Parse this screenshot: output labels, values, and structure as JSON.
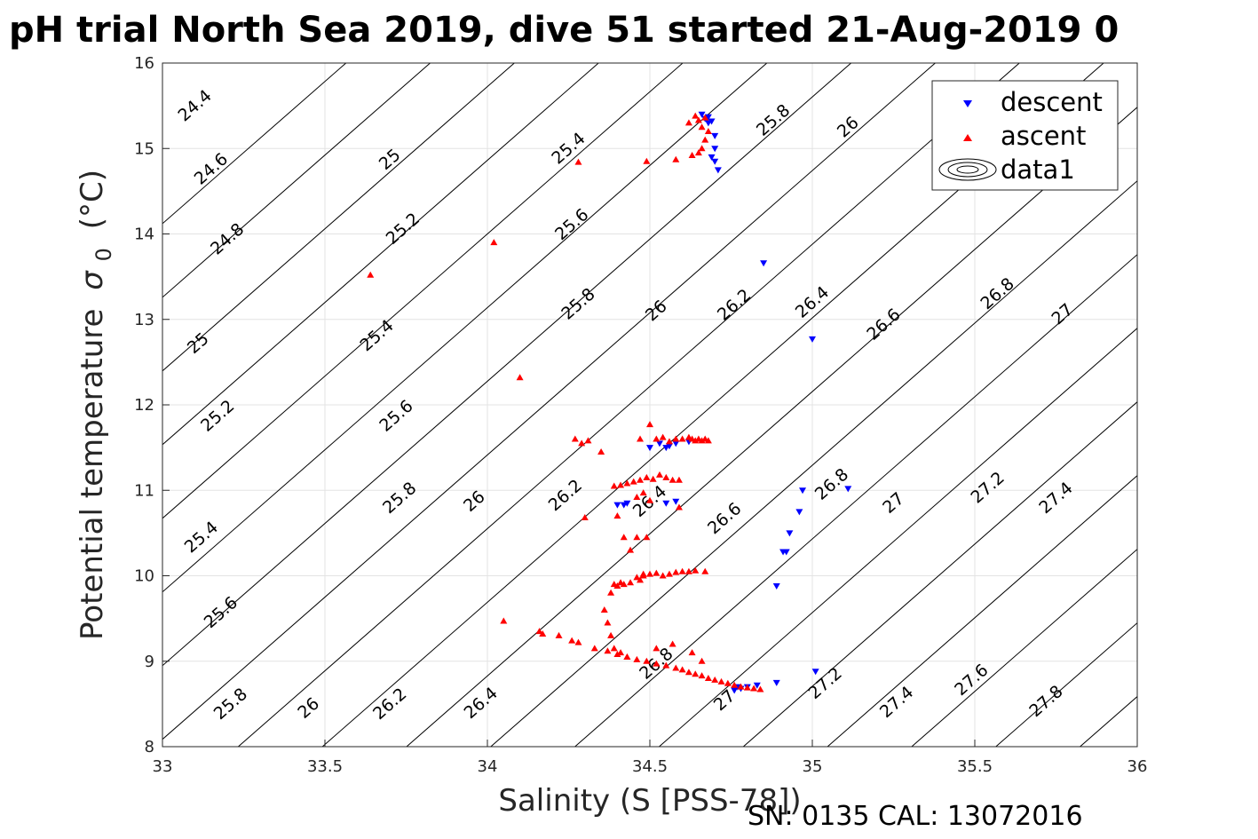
{
  "chart_data": {
    "type": "scatter",
    "title": "pH trial North Sea 2019, dive 51 started 21-Aug-2019 0",
    "xlabel": "Salinity (S [PSS-78])",
    "ylabel": "Potential temperature",
    "ylabel_symbol": "σ",
    "ylabel_sub": "0",
    "ylabel_unit": "(°C)",
    "xlim": [
      33,
      36
    ],
    "ylim": [
      8,
      16
    ],
    "xticks": [
      "33",
      "33.5",
      "34",
      "34.5",
      "35",
      "35.5",
      "36"
    ],
    "yticks": [
      "8",
      "9",
      "10",
      "11",
      "12",
      "13",
      "14",
      "15",
      "16"
    ],
    "grid": true,
    "legend_position": "top-right",
    "legend": [
      "descent",
      "ascent",
      "data1"
    ],
    "colors": {
      "descent": "#0000ff",
      "ascent": "#ff0000",
      "contour": "#000000"
    },
    "footer": "SN: 0135  CAL: 13072016",
    "contour_levels": [
      24.2,
      24.4,
      24.6,
      24.8,
      25.0,
      25.2,
      25.4,
      25.6,
      25.8,
      26.0,
      26.2,
      26.4,
      26.6,
      26.8,
      27.0,
      27.2,
      27.4,
      27.6,
      27.8,
      28.0
    ],
    "contour_labels": [
      {
        "text": "24.4",
        "x": 33.1,
        "y": 15.5
      },
      {
        "text": "24.6",
        "x": 33.15,
        "y": 14.76
      },
      {
        "text": "24.8",
        "x": 33.2,
        "y": 13.94
      },
      {
        "text": "25",
        "x": 33.11,
        "y": 12.72
      },
      {
        "text": "25.2",
        "x": 33.17,
        "y": 11.87
      },
      {
        "text": "25.4",
        "x": 33.12,
        "y": 10.45
      },
      {
        "text": "25.6",
        "x": 33.18,
        "y": 9.57
      },
      {
        "text": "25.8",
        "x": 33.21,
        "y": 8.5
      },
      {
        "text": "26",
        "x": 33.45,
        "y": 8.45
      },
      {
        "text": "26.2",
        "x": 33.7,
        "y": 8.5
      },
      {
        "text": "26.4",
        "x": 33.98,
        "y": 8.51
      },
      {
        "text": "25",
        "x": 33.7,
        "y": 14.87
      },
      {
        "text": "25.2",
        "x": 33.74,
        "y": 14.06
      },
      {
        "text": "25.4",
        "x": 33.66,
        "y": 12.81
      },
      {
        "text": "25.6",
        "x": 33.72,
        "y": 11.87
      },
      {
        "text": "25.8",
        "x": 33.73,
        "y": 10.91
      },
      {
        "text": "26",
        "x": 33.96,
        "y": 10.87
      },
      {
        "text": "26.2",
        "x": 34.24,
        "y": 10.94
      },
      {
        "text": "26.4",
        "x": 34.5,
        "y": 10.87
      },
      {
        "text": "26.6",
        "x": 34.73,
        "y": 10.67
      },
      {
        "text": "26.8",
        "x": 34.52,
        "y": 8.97
      },
      {
        "text": "27",
        "x": 34.73,
        "y": 8.54
      },
      {
        "text": "27.2",
        "x": 35.04,
        "y": 8.74
      },
      {
        "text": "27.4",
        "x": 35.26,
        "y": 8.52
      },
      {
        "text": "27.6",
        "x": 35.49,
        "y": 8.78
      },
      {
        "text": "27.8",
        "x": 35.72,
        "y": 8.53
      },
      {
        "text": "25.4",
        "x": 34.25,
        "y": 15.0
      },
      {
        "text": "25.6",
        "x": 34.26,
        "y": 14.11
      },
      {
        "text": "25.8",
        "x": 34.28,
        "y": 13.18
      },
      {
        "text": "26",
        "x": 34.52,
        "y": 13.1
      },
      {
        "text": "26.2",
        "x": 34.76,
        "y": 13.17
      },
      {
        "text": "26.4",
        "x": 35.0,
        "y": 13.2
      },
      {
        "text": "26.6",
        "x": 35.22,
        "y": 12.94
      },
      {
        "text": "26.8",
        "x": 35.06,
        "y": 11.07
      },
      {
        "text": "27",
        "x": 35.25,
        "y": 10.85
      },
      {
        "text": "27.2",
        "x": 35.54,
        "y": 11.03
      },
      {
        "text": "27.4",
        "x": 35.75,
        "y": 10.91
      },
      {
        "text": "25.8",
        "x": 34.88,
        "y": 15.33
      },
      {
        "text": "26",
        "x": 35.11,
        "y": 15.25
      },
      {
        "text": "26.8",
        "x": 35.57,
        "y": 13.3
      },
      {
        "text": "27",
        "x": 35.77,
        "y": 13.06
      }
    ],
    "descent": {
      "x": [
        34.66,
        34.67,
        34.68,
        34.69,
        34.7,
        34.7,
        34.69,
        34.71,
        34.7,
        34.68,
        34.85,
        35.0,
        34.5,
        34.53,
        34.55,
        34.56,
        34.58,
        34.62,
        34.4,
        34.42,
        34.43,
        34.55,
        34.58,
        34.97,
        34.96,
        34.93,
        34.91,
        34.89,
        34.92,
        35.01,
        34.89,
        34.83,
        34.78,
        34.76,
        34.77,
        34.8,
        35.11
      ],
      "y": [
        15.4,
        15.35,
        15.3,
        15.32,
        15.15,
        15.0,
        14.9,
        14.75,
        14.85,
        15.37,
        13.66,
        12.77,
        11.5,
        11.55,
        11.5,
        11.52,
        11.55,
        11.57,
        10.83,
        10.83,
        10.85,
        10.85,
        10.87,
        11.0,
        10.75,
        10.5,
        10.28,
        9.88,
        10.28,
        8.88,
        8.75,
        8.72,
        8.68,
        8.66,
        8.7,
        8.7,
        11.02
      ]
    },
    "ascent": {
      "x": [
        33.64,
        34.02,
        34.1,
        34.28,
        34.49,
        34.58,
        34.63,
        34.65,
        34.66,
        34.67,
        34.68,
        34.66,
        34.65,
        34.67,
        34.64,
        34.62,
        34.27,
        34.29,
        34.31,
        34.35,
        34.47,
        34.5,
        34.52,
        34.54,
        34.56,
        34.58,
        34.6,
        34.62,
        34.63,
        34.64,
        34.65,
        34.66,
        34.67,
        34.68,
        34.39,
        34.41,
        34.43,
        34.45,
        34.47,
        34.49,
        34.51,
        34.53,
        34.55,
        34.57,
        34.59,
        34.46,
        34.48,
        34.5,
        34.4,
        34.42,
        34.44,
        34.46,
        34.49,
        34.39,
        34.41,
        34.47,
        34.48,
        34.36,
        34.38,
        34.4,
        34.42,
        34.44,
        34.46,
        34.48,
        34.5,
        34.52,
        34.54,
        34.56,
        34.58,
        34.6,
        34.62,
        34.64,
        34.67,
        34.37,
        34.38,
        34.39,
        34.41,
        34.43,
        34.05,
        34.16,
        34.17,
        34.22,
        34.26,
        34.28,
        34.33,
        34.37,
        34.4,
        34.43,
        34.46,
        34.49,
        34.52,
        34.55,
        34.58,
        34.6,
        34.62,
        34.64,
        34.66,
        34.68,
        34.7,
        34.72,
        34.74,
        34.76,
        34.78,
        34.8,
        34.82,
        34.84,
        34.66,
        34.63,
        34.57,
        34.52,
        34.3,
        34.59
      ],
      "y": [
        13.52,
        13.9,
        12.32,
        14.84,
        14.85,
        14.87,
        14.92,
        14.95,
        15.0,
        15.1,
        15.2,
        15.25,
        15.33,
        15.36,
        15.38,
        15.3,
        11.6,
        11.55,
        11.58,
        11.45,
        11.6,
        11.77,
        11.6,
        11.62,
        11.57,
        11.6,
        11.6,
        11.62,
        11.6,
        11.58,
        11.6,
        11.58,
        11.6,
        11.58,
        11.05,
        11.06,
        11.08,
        11.1,
        11.12,
        11.15,
        11.13,
        11.18,
        11.15,
        11.12,
        11.12,
        10.92,
        10.97,
        10.88,
        10.7,
        10.45,
        10.3,
        10.45,
        10.45,
        9.9,
        9.92,
        9.95,
        10.02,
        9.6,
        9.8,
        9.88,
        9.9,
        9.92,
        9.98,
        10.0,
        10.02,
        10.03,
        10.0,
        10.02,
        10.04,
        10.05,
        10.05,
        10.06,
        10.05,
        9.45,
        9.3,
        9.15,
        9.1,
        9.05,
        9.47,
        9.35,
        9.32,
        9.3,
        9.24,
        9.22,
        9.15,
        9.12,
        9.08,
        9.05,
        9.02,
        9.0,
        8.97,
        8.95,
        8.92,
        8.9,
        8.87,
        8.85,
        8.83,
        8.8,
        8.78,
        8.76,
        8.74,
        8.72,
        8.7,
        8.69,
        8.68,
        8.67,
        9.0,
        9.1,
        9.2,
        9.15,
        10.68,
        10.8
      ]
    }
  }
}
